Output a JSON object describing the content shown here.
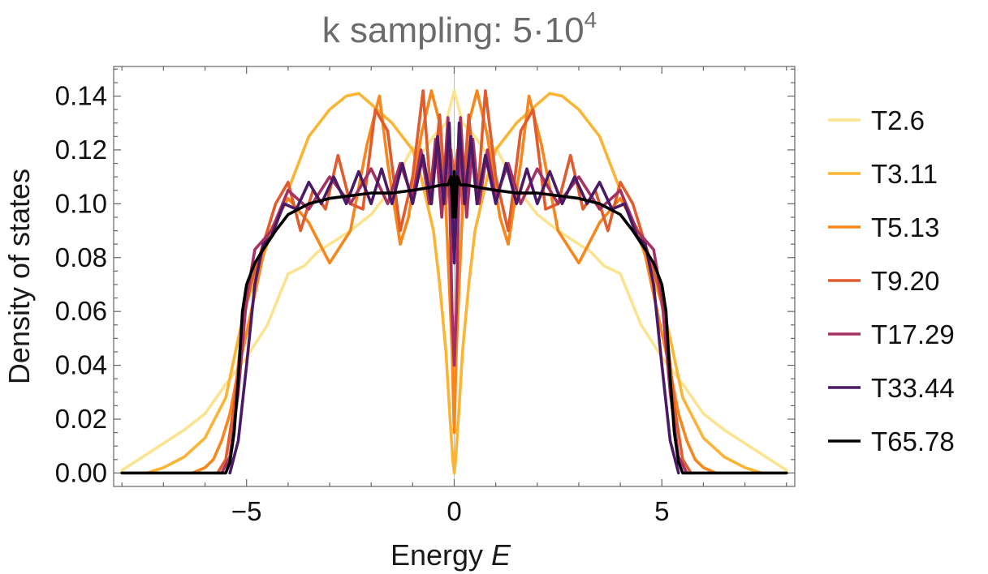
{
  "chart_data": {
    "type": "line",
    "title": "k sampling: 5·10",
    "title_exponent": "4",
    "xlabel": "Energy",
    "xlabel_var": "E",
    "ylabel": "Density of states",
    "xlim": [
      -8.2,
      8.2
    ],
    "ylim": [
      -0.005,
      0.151
    ],
    "x_ticks": [
      -5,
      0,
      5
    ],
    "x_tick_labels": [
      "−5",
      "0",
      "5"
    ],
    "y_ticks": [
      0.0,
      0.02,
      0.04,
      0.06,
      0.08,
      0.1,
      0.12,
      0.14
    ],
    "y_tick_labels": [
      "0.00",
      "0.02",
      "0.04",
      "0.06",
      "0.08",
      "0.10",
      "0.12",
      "0.14"
    ],
    "legend_position": "right",
    "series": [
      {
        "name": "T2.6",
        "color": "#fbe38f",
        "x": [
          0,
          0.2,
          0.5,
          0.8,
          1.0,
          1.3,
          1.6,
          2.0,
          2.5,
          3.0,
          3.3,
          3.6,
          4.0,
          4.5,
          5.0,
          5.5,
          6.0,
          6.5,
          7.0,
          7.5,
          8.0
        ],
        "y": [
          0.142,
          0.13,
          0.125,
          0.118,
          0.121,
          0.112,
          0.104,
          0.096,
          0.09,
          0.085,
          0.082,
          0.077,
          0.074,
          0.055,
          0.043,
          0.033,
          0.022,
          0.016,
          0.011,
          0.006,
          0.001
        ]
      },
      {
        "name": "T3.11",
        "color": "#fbb434",
        "x": [
          0,
          0.03,
          0.1,
          0.2,
          0.35,
          0.5,
          0.8,
          1.0,
          1.5,
          2.0,
          2.3,
          2.6,
          3.0,
          3.5,
          4.0,
          4.5,
          5.0,
          5.2,
          5.5,
          6.0,
          6.5,
          7.0,
          7.4
        ],
        "y": [
          0.0,
          0.004,
          0.02,
          0.045,
          0.07,
          0.09,
          0.11,
          0.12,
          0.13,
          0.137,
          0.141,
          0.14,
          0.135,
          0.125,
          0.105,
          0.085,
          0.063,
          0.05,
          0.028,
          0.013,
          0.006,
          0.002,
          0.0
        ]
      },
      {
        "name": "T5.13",
        "color": "#f7871c",
        "x": [
          0,
          0.05,
          0.12,
          0.22,
          0.35,
          0.55,
          0.8,
          1.1,
          1.3,
          1.6,
          1.8,
          2.1,
          2.5,
          3.0,
          3.5,
          4.0,
          4.5,
          5.0,
          5.2,
          5.4,
          5.6,
          5.8,
          6.0,
          6.3
        ],
        "y": [
          0.015,
          0.045,
          0.07,
          0.105,
          0.13,
          0.142,
          0.125,
          0.095,
          0.085,
          0.115,
          0.14,
          0.122,
          0.09,
          0.078,
          0.093,
          0.102,
          0.088,
          0.052,
          0.038,
          0.022,
          0.012,
          0.005,
          0.002,
          0.0
        ]
      },
      {
        "name": "T9.20",
        "color": "#e15c2d",
        "x": [
          0,
          0.08,
          0.2,
          0.35,
          0.55,
          0.75,
          1.0,
          1.3,
          1.6,
          1.9,
          2.2,
          2.5,
          2.8,
          3.1,
          3.4,
          3.7,
          4.0,
          4.3,
          4.6,
          4.9,
          5.1,
          5.3,
          5.5,
          5.7
        ],
        "y": [
          0.11,
          0.12,
          0.1,
          0.133,
          0.1,
          0.142,
          0.11,
          0.09,
          0.127,
          0.135,
          0.098,
          0.1,
          0.118,
          0.098,
          0.105,
          0.09,
          0.108,
          0.1,
          0.085,
          0.07,
          0.055,
          0.025,
          0.005,
          0.0
        ]
      },
      {
        "name": "T17.29",
        "color": "#a63062",
        "x": [
          0,
          0.05,
          0.15,
          0.3,
          0.45,
          0.6,
          0.8,
          1.0,
          1.3,
          1.6,
          2.0,
          2.5,
          3.0,
          3.5,
          4.0,
          4.4,
          4.8,
          5.0,
          5.2,
          5.4,
          5.6
        ],
        "y": [
          0.04,
          0.06,
          0.132,
          0.095,
          0.124,
          0.1,
          0.12,
          0.102,
          0.115,
          0.1,
          0.113,
          0.1,
          0.11,
          0.098,
          0.105,
          0.09,
          0.083,
          0.065,
          0.03,
          0.006,
          0.0
        ]
      },
      {
        "name": "T33.44",
        "color": "#4a1a66",
        "x": [
          0,
          0.05,
          0.12,
          0.25,
          0.4,
          0.55,
          0.75,
          1.0,
          1.25,
          1.5,
          1.75,
          2.0,
          2.3,
          2.6,
          2.9,
          3.2,
          3.5,
          3.8,
          4.1,
          4.4,
          4.6,
          4.8,
          5.0,
          5.2,
          5.4
        ],
        "y": [
          0.078,
          0.1,
          0.13,
          0.1,
          0.125,
          0.1,
          0.118,
          0.1,
          0.115,
          0.1,
          0.113,
          0.1,
          0.112,
          0.1,
          0.11,
          0.1,
          0.108,
          0.098,
          0.1,
          0.088,
          0.085,
          0.07,
          0.04,
          0.012,
          0.0
        ]
      },
      {
        "name": "T65.78",
        "color": "#000000",
        "x": [
          0,
          0.03,
          0.08,
          0.15,
          0.3,
          0.6,
          1.0,
          1.5,
          2.0,
          2.5,
          3.0,
          3.5,
          4.0,
          4.3,
          4.6,
          4.8,
          5.0,
          5.1,
          5.2,
          5.3,
          5.4,
          5.5,
          8.0
        ],
        "y": [
          0.112,
          0.095,
          0.11,
          0.107,
          0.107,
          0.106,
          0.105,
          0.104,
          0.104,
          0.103,
          0.102,
          0.1,
          0.096,
          0.09,
          0.083,
          0.078,
          0.07,
          0.06,
          0.035,
          0.015,
          0.004,
          0.0,
          0.0
        ]
      }
    ]
  }
}
